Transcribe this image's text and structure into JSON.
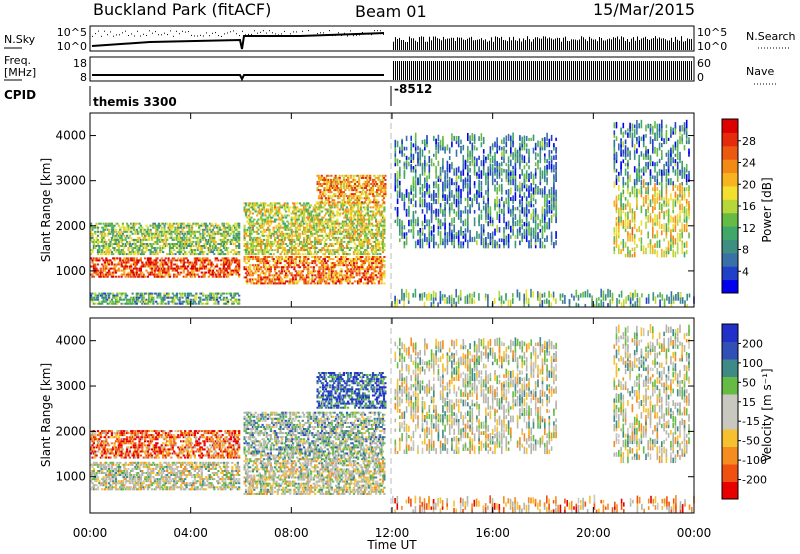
{
  "header": {
    "station": "Buckland Park (fitACF)",
    "beam": "Beam 01",
    "date": "15/Mar/2015"
  },
  "side_labels": {
    "nsky": "N.Sky",
    "freq_line1": "Freq.",
    "freq_line2": "[MHz]",
    "cpid": "CPID",
    "nsearch": "N.Search",
    "nave": "Nave",
    "noise_top": "10^5",
    "noise_bottom": "10^0",
    "freq_top": "18",
    "freq_bottom": "8",
    "nave_top": "60",
    "nave_bottom": "0"
  },
  "cpid_entries": [
    {
      "hour": 0,
      "label": "themis 3300"
    },
    {
      "hour": 12,
      "label": "-8512"
    }
  ],
  "colors": {
    "power_scale": [
      "#0000ee",
      "#2040c8",
      "#3a70a8",
      "#3f8f80",
      "#3fa868",
      "#66bb44",
      "#b7d63a",
      "#f3e02e",
      "#f7b420",
      "#f38a18",
      "#ec5a12",
      "#e62a0c",
      "#dd0000"
    ],
    "velocity_scale": [
      "#e80000",
      "#f05010",
      "#f58c20",
      "#f6c030",
      "#c8c8c0",
      "#c8c8c0",
      "#66bb44",
      "#3e8a86",
      "#3050b8",
      "#2030c8"
    ],
    "ground_scatter": "#b4b4aa"
  },
  "chart_data": [
    {
      "type": "heatmap",
      "name": "power",
      "x": {
        "label": "Time UT",
        "range_hours": [
          0,
          24
        ],
        "ticks": [
          "00:00",
          "04:00",
          "08:00",
          "12:00",
          "16:00",
          "20:00",
          "00:00"
        ]
      },
      "y": {
        "label": "Slant Range [km]",
        "range": [
          200,
          4500
        ],
        "ticks": [
          1000,
          2000,
          3000,
          4000
        ]
      },
      "colorbar": {
        "label": "Power [dB]",
        "range": [
          0,
          32
        ],
        "ticks": [
          "4",
          "8",
          "12",
          "16",
          "20",
          "24",
          "28"
        ]
      },
      "regions": [
        {
          "t": [
            0,
            5.9
          ],
          "r": [
            850,
            1300
          ],
          "level": 0.85
        },
        {
          "t": [
            6.1,
            11.7
          ],
          "r": [
            700,
            1300
          ],
          "level": 0.75
        },
        {
          "t": [
            0,
            5.9
          ],
          "r": [
            1350,
            2050
          ],
          "level": 0.45
        },
        {
          "t": [
            6.1,
            11.7
          ],
          "r": [
            1350,
            2500
          ],
          "level": 0.55
        },
        {
          "t": [
            9.0,
            11.7
          ],
          "r": [
            2500,
            3100
          ],
          "level": 0.7
        },
        {
          "t": [
            0,
            5.9
          ],
          "r": [
            250,
            500
          ],
          "level": 0.35
        },
        {
          "t": [
            12.1,
            18.5
          ],
          "r": [
            1500,
            3900
          ],
          "level": 0.25
        },
        {
          "t": [
            20.8,
            23.8
          ],
          "r": [
            1300,
            2900
          ],
          "level": 0.55
        },
        {
          "t": [
            20.8,
            23.8
          ],
          "r": [
            2900,
            4200
          ],
          "level": 0.25
        },
        {
          "t": [
            12.0,
            24.0
          ],
          "r": [
            200,
            450
          ],
          "level": 0.35
        }
      ]
    },
    {
      "type": "heatmap",
      "name": "velocity",
      "x": {
        "label": "Time UT",
        "range_hours": [
          0,
          24
        ],
        "ticks": [
          "00:00",
          "04:00",
          "08:00",
          "12:00",
          "16:00",
          "20:00",
          "00:00"
        ]
      },
      "y": {
        "label": "Slant Range [km]",
        "range": [
          200,
          4500
        ],
        "ticks": [
          1000,
          2000,
          3000,
          4000
        ]
      },
      "colorbar": {
        "label": "Velocity [m s⁻¹]",
        "ticks": [
          "200",
          "100",
          "50",
          "15",
          "-15",
          "-50",
          "-100",
          "-200"
        ]
      },
      "regions": [
        {
          "t": [
            0,
            5.9
          ],
          "r": [
            700,
            1300
          ],
          "level": 0.5
        },
        {
          "t": [
            6.1,
            11.7
          ],
          "r": [
            600,
            1400
          ],
          "level": 0.5
        },
        {
          "t": [
            0,
            5.9
          ],
          "r": [
            1400,
            2000
          ],
          "level": 0.2
        },
        {
          "t": [
            6.1,
            11.7
          ],
          "r": [
            1400,
            2400
          ],
          "level": 0.6
        },
        {
          "t": [
            9.0,
            11.7
          ],
          "r": [
            2500,
            3300
          ],
          "level": 0.85
        },
        {
          "t": [
            12.1,
            18.5
          ],
          "r": [
            1500,
            3900
          ],
          "level": 0.5
        },
        {
          "t": [
            20.8,
            23.8
          ],
          "r": [
            1300,
            4200
          ],
          "level": 0.5
        },
        {
          "t": [
            12.0,
            24.0
          ],
          "r": [
            200,
            450
          ],
          "level": 0.3
        }
      ]
    }
  ]
}
